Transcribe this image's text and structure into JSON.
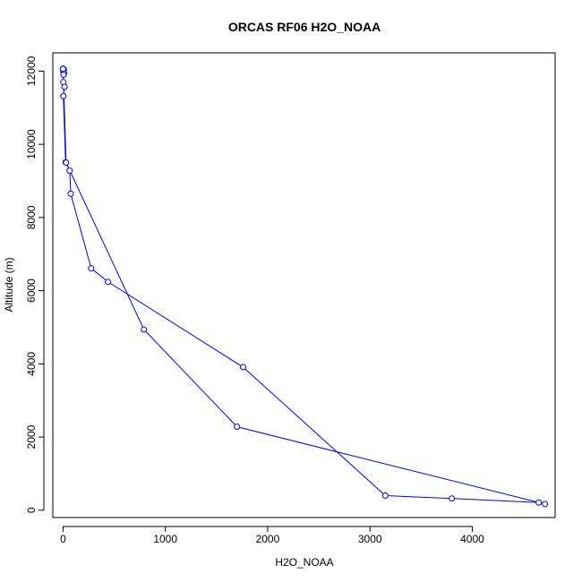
{
  "chart_data": {
    "type": "line",
    "title": "ORCAS RF06 H2O_NOAA",
    "xlabel": "H2O_NOAA",
    "ylabel": "Altitude (m)",
    "xlim": [
      -100,
      4810
    ],
    "ylim": [
      -200,
      12500
    ],
    "xticks": [
      0,
      1000,
      2000,
      3000,
      4000
    ],
    "yticks": [
      0,
      2000,
      4000,
      6000,
      8000,
      10000,
      12000
    ],
    "grid": false,
    "color": "#0000ff",
    "series": [
      {
        "points": [
          [
            0,
            12070
          ],
          [
            5,
            12050
          ],
          [
            8,
            12040
          ],
          [
            4,
            12020
          ],
          [
            3,
            11990
          ],
          [
            6,
            11960
          ],
          [
            10,
            11940
          ],
          [
            4,
            11900
          ],
          [
            2,
            11700
          ],
          [
            15,
            11570
          ],
          [
            3,
            11320
          ],
          [
            25,
            9510
          ],
          [
            65,
            9280
          ],
          [
            75,
            8650
          ],
          [
            275,
            6610
          ],
          [
            440,
            6240
          ],
          [
            1760,
            3910
          ],
          [
            3150,
            400
          ],
          [
            3800,
            320
          ],
          [
            4650,
            210
          ],
          [
            4710,
            170
          ],
          [
            1700,
            2280
          ],
          [
            790,
            4940
          ],
          [
            30,
            9500
          ],
          [
            0,
            12060
          ]
        ]
      }
    ]
  }
}
